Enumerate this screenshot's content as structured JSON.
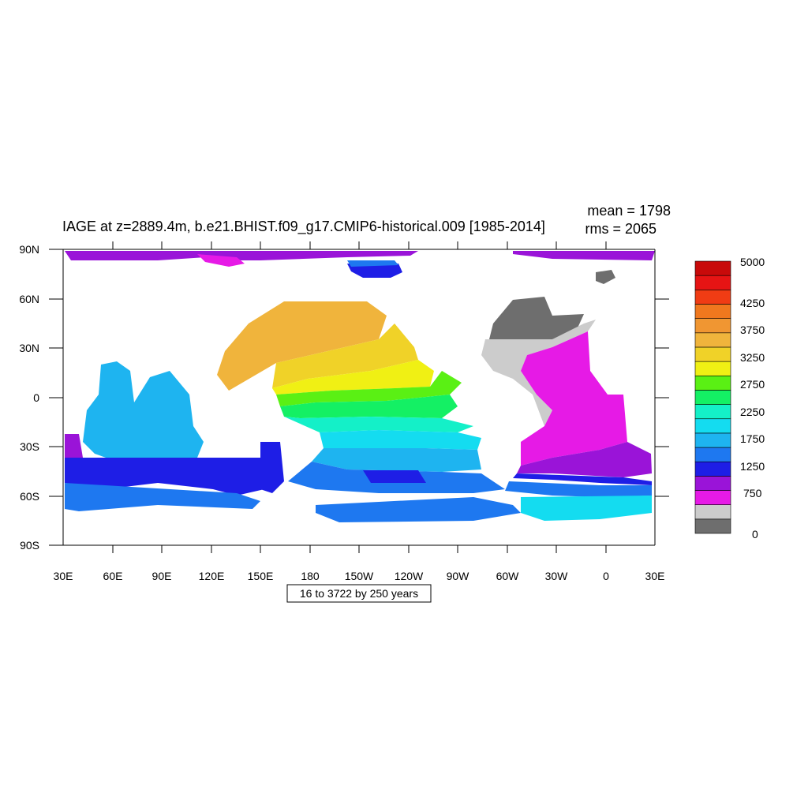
{
  "title": "IAGE at z=2889.4m, b.e21.BHIST.f09_g17.CMIP6-historical.009 [1985-2014]",
  "stats": {
    "mean": "mean = 1798",
    "rms": "rms = 2065"
  },
  "subtitle_box": "16 to 3722 by 250 years",
  "lon_labels": [
    "30E",
    "60E",
    "90E",
    "120E",
    "150E",
    "180",
    "150W",
    "120W",
    "90W",
    "60W",
    "30W",
    "0",
    "30E"
  ],
  "lat_labels": [
    "90N",
    "60N",
    "30N",
    "0",
    "30S",
    "60S",
    "90S"
  ],
  "colorbar": {
    "labels": [
      "5000",
      "4250",
      "3750",
      "3250",
      "2750",
      "2250",
      "1750",
      "1250",
      "750",
      "0"
    ],
    "colors": [
      "#6e6e6e",
      "#cccccc",
      "#e61ae6",
      "#9a14d8",
      "#1e1ee6",
      "#1e78f0",
      "#1eb4f0",
      "#14dcf0",
      "#14f0c8",
      "#14f064",
      "#5af014",
      "#f0f014",
      "#f0d228",
      "#f0b43c",
      "#f09632",
      "#f0781e",
      "#f03c14",
      "#e61414",
      "#c80a0a"
    ]
  },
  "legend_colors": {
    "dark_gray": "#6e6e6e",
    "light_gray": "#cccccc",
    "magenta": "#e61ae6",
    "purple": "#9a14d8",
    "blue": "#1e1ee6",
    "mid_blue": "#1e78f0",
    "sky": "#1eb4f0",
    "cyan": "#14dcf0",
    "aqua": "#14f0c8",
    "green": "#14f064",
    "lime": "#5af014",
    "yellow": "#f0f014",
    "gold": "#f0d228",
    "amber": "#f0b43c",
    "orange": "#f09632"
  }
}
